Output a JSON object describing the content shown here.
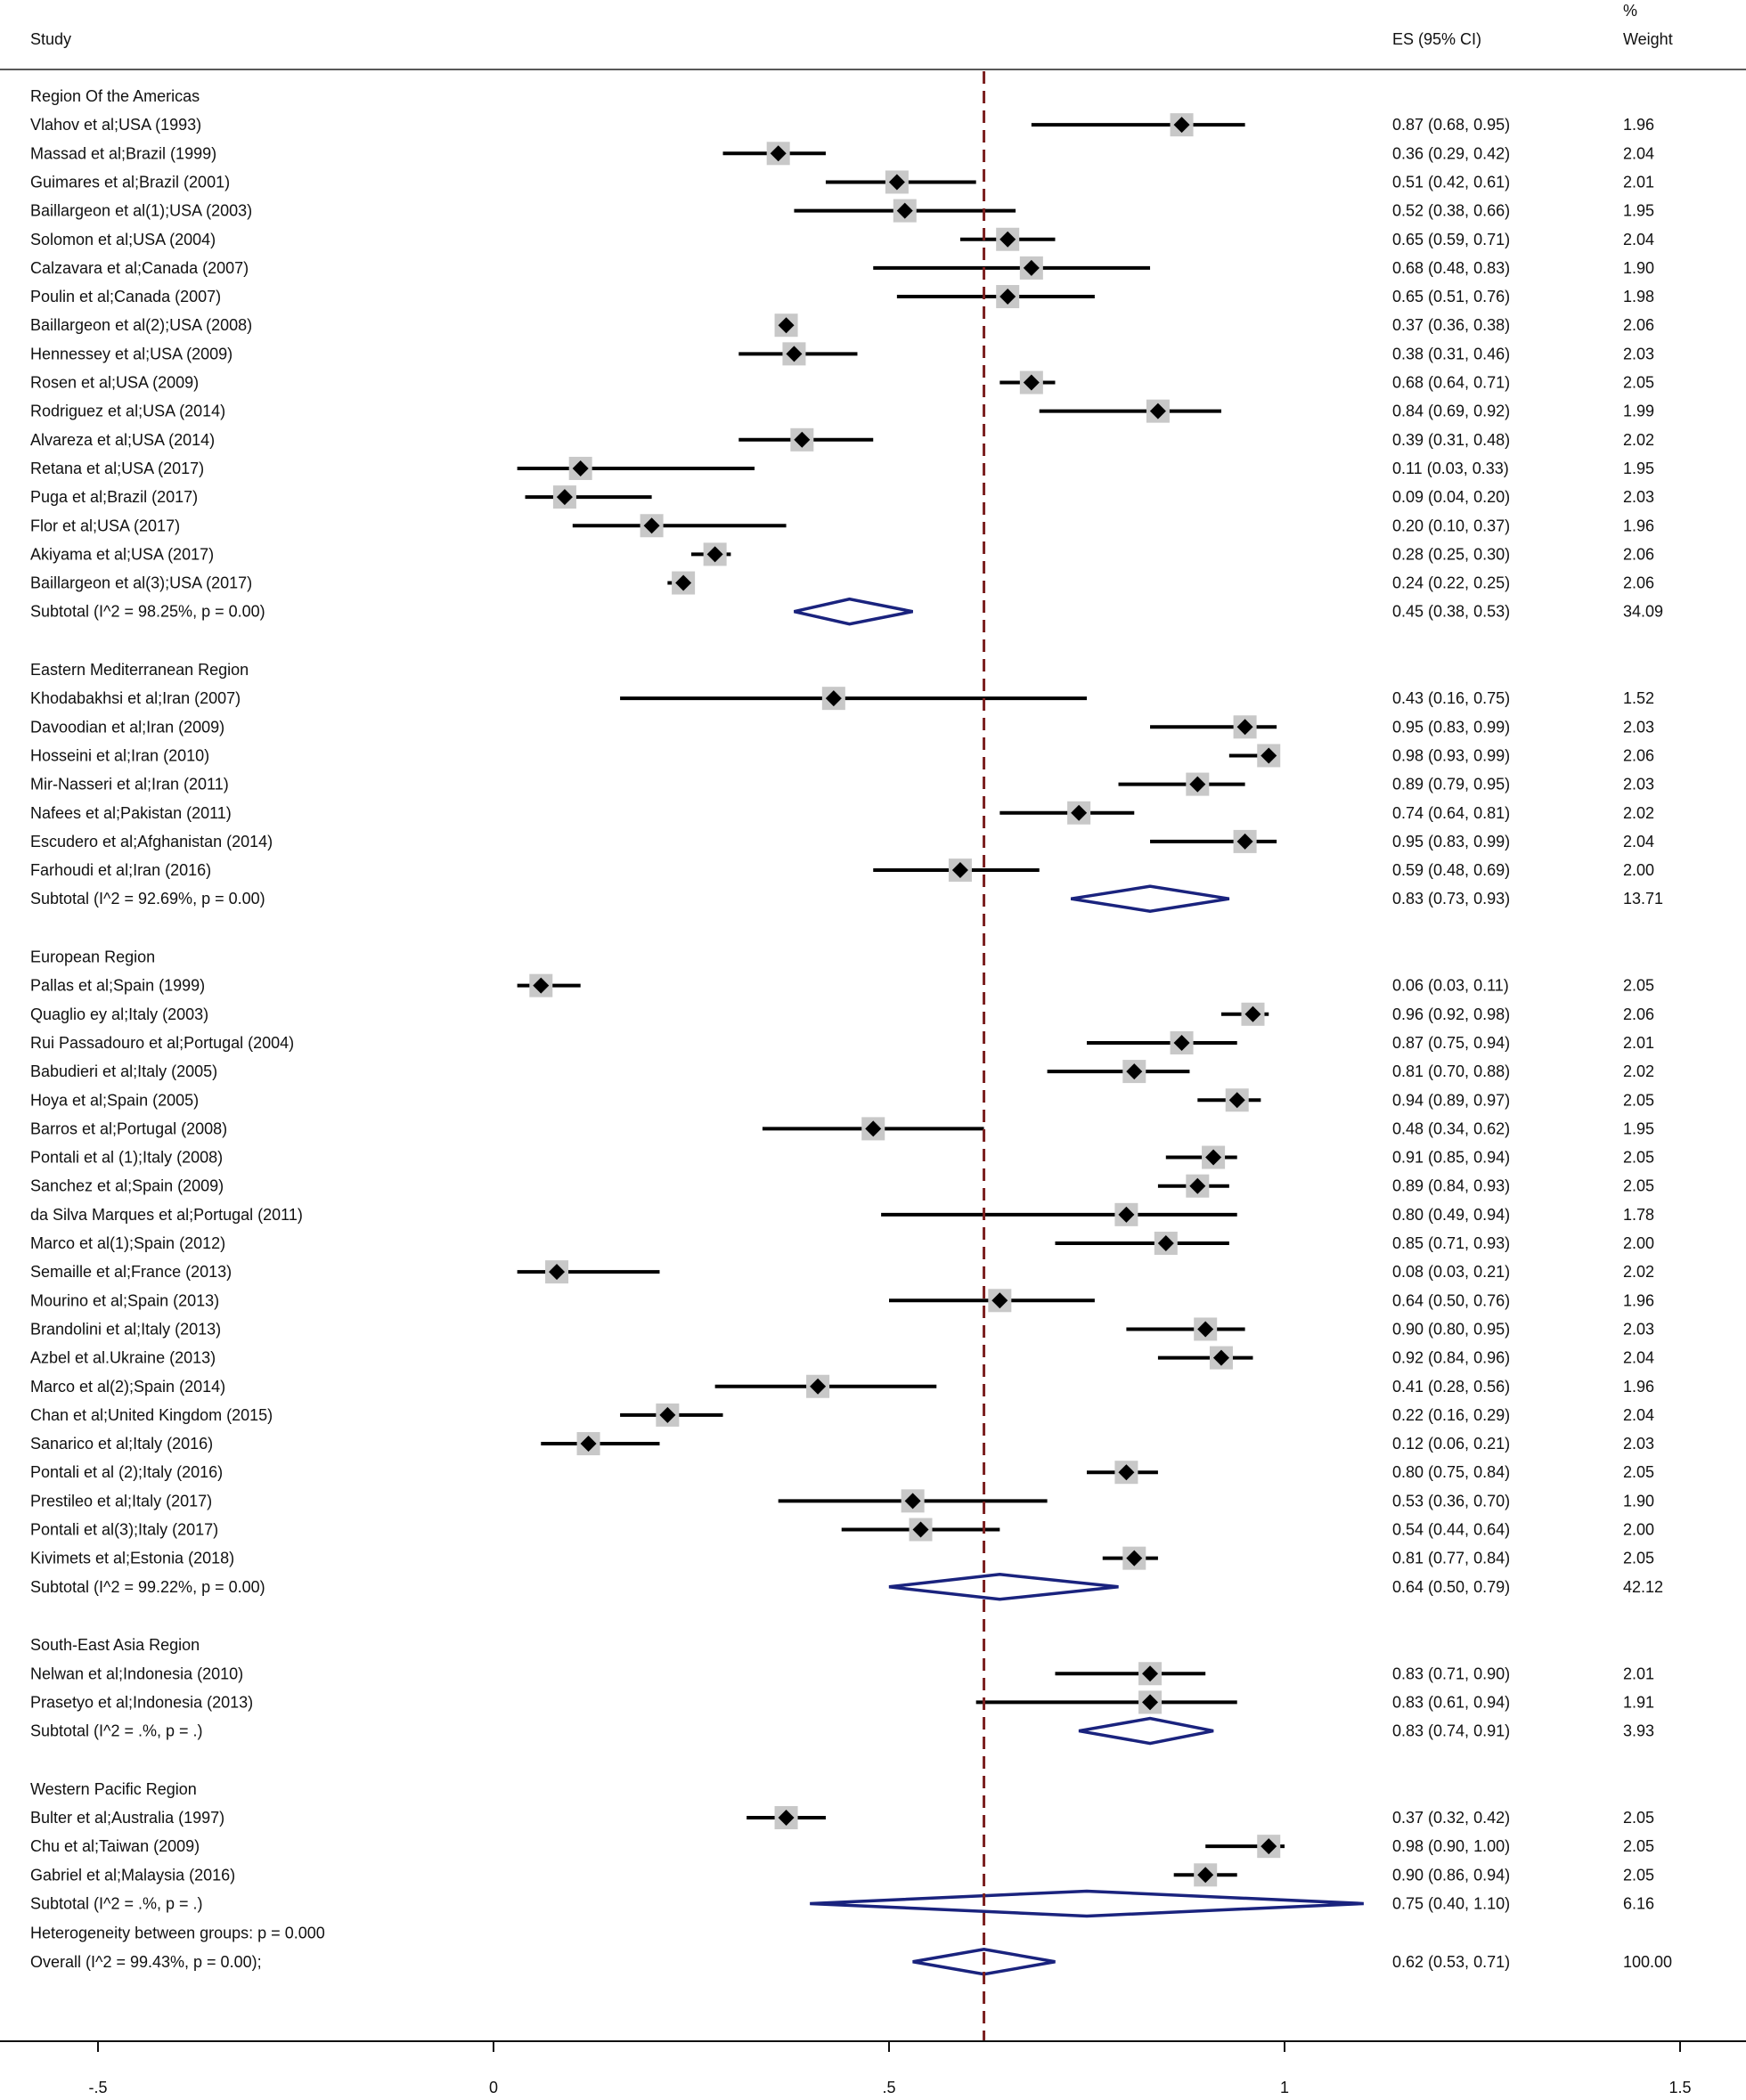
{
  "chart_data": {
    "type": "forest",
    "headers": {
      "study": "Study",
      "es": "ES (95% CI)",
      "weight_top": "%",
      "weight_bottom": "Weight"
    },
    "axis": {
      "xlim": [
        -0.5,
        1.5
      ],
      "ticks": [
        {
          "value": -0.5,
          "label": "-.5"
        },
        {
          "value": 0,
          "label": "0"
        },
        {
          "value": 0.5,
          "label": ".5"
        },
        {
          "value": 1,
          "label": "1"
        },
        {
          "value": 1.5,
          "label": "1.5"
        }
      ],
      "reference_line": 0.62
    },
    "groups": [
      {
        "name": "Region Of the Americas",
        "studies": [
          {
            "label": "Vlahov et al;USA (1993)",
            "es": 0.87,
            "lo": 0.68,
            "hi": 0.95,
            "ci_text": "0.87 (0.68, 0.95)",
            "weight": "1.96"
          },
          {
            "label": "Massad et al;Brazil (1999)",
            "es": 0.36,
            "lo": 0.29,
            "hi": 0.42,
            "ci_text": "0.36 (0.29, 0.42)",
            "weight": "2.04"
          },
          {
            "label": "Guimares et al;Brazil (2001)",
            "es": 0.51,
            "lo": 0.42,
            "hi": 0.61,
            "ci_text": "0.51 (0.42, 0.61)",
            "weight": "2.01"
          },
          {
            "label": "Baillargeon et al(1);USA (2003)",
            "es": 0.52,
            "lo": 0.38,
            "hi": 0.66,
            "ci_text": "0.52 (0.38, 0.66)",
            "weight": "1.95"
          },
          {
            "label": "Solomon et al;USA (2004)",
            "es": 0.65,
            "lo": 0.59,
            "hi": 0.71,
            "ci_text": "0.65 (0.59, 0.71)",
            "weight": "2.04"
          },
          {
            "label": "Calzavara et al;Canada (2007)",
            "es": 0.68,
            "lo": 0.48,
            "hi": 0.83,
            "ci_text": "0.68 (0.48, 0.83)",
            "weight": "1.90"
          },
          {
            "label": "Poulin et al;Canada (2007)",
            "es": 0.65,
            "lo": 0.51,
            "hi": 0.76,
            "ci_text": "0.65 (0.51, 0.76)",
            "weight": "1.98"
          },
          {
            "label": "Baillargeon et al(2);USA (2008)",
            "es": 0.37,
            "lo": 0.36,
            "hi": 0.38,
            "ci_text": "0.37 (0.36, 0.38)",
            "weight": "2.06"
          },
          {
            "label": "Hennessey et al;USA (2009)",
            "es": 0.38,
            "lo": 0.31,
            "hi": 0.46,
            "ci_text": "0.38 (0.31, 0.46)",
            "weight": "2.03"
          },
          {
            "label": "Rosen et al;USA (2009)",
            "es": 0.68,
            "lo": 0.64,
            "hi": 0.71,
            "ci_text": "0.68 (0.64, 0.71)",
            "weight": "2.05"
          },
          {
            "label": "Rodriguez et al;USA (2014)",
            "es": 0.84,
            "lo": 0.69,
            "hi": 0.92,
            "ci_text": "0.84 (0.69, 0.92)",
            "weight": "1.99"
          },
          {
            "label": "Alvareza et al;USA (2014)",
            "es": 0.39,
            "lo": 0.31,
            "hi": 0.48,
            "ci_text": "0.39 (0.31, 0.48)",
            "weight": "2.02"
          },
          {
            "label": "Retana et al;USA (2017)",
            "es": 0.11,
            "lo": 0.03,
            "hi": 0.33,
            "ci_text": "0.11 (0.03, 0.33)",
            "weight": "1.95"
          },
          {
            "label": "Puga et al;Brazil (2017)",
            "es": 0.09,
            "lo": 0.04,
            "hi": 0.2,
            "ci_text": "0.09 (0.04, 0.20)",
            "weight": "2.03"
          },
          {
            "label": "Flor et al;USA (2017)",
            "es": 0.2,
            "lo": 0.1,
            "hi": 0.37,
            "ci_text": "0.20 (0.10, 0.37)",
            "weight": "1.96"
          },
          {
            "label": "Akiyama et al;USA (2017)",
            "es": 0.28,
            "lo": 0.25,
            "hi": 0.3,
            "ci_text": "0.28 (0.25, 0.30)",
            "weight": "2.06"
          },
          {
            "label": "Baillargeon et al(3);USA (2017)",
            "es": 0.24,
            "lo": 0.22,
            "hi": 0.25,
            "ci_text": "0.24 (0.22, 0.25)",
            "weight": "2.06"
          }
        ],
        "subtotal": {
          "label": "Subtotal  (I^2 = 98.25%, p = 0.00)",
          "es": 0.45,
          "lo": 0.38,
          "hi": 0.53,
          "ci_text": "0.45 (0.38, 0.53)",
          "weight": "34.09"
        }
      },
      {
        "name": "Eastern Mediterranean Region",
        "studies": [
          {
            "label": "Khodabakhsi et al;Iran (2007)",
            "es": 0.43,
            "lo": 0.16,
            "hi": 0.75,
            "ci_text": "0.43 (0.16, 0.75)",
            "weight": "1.52"
          },
          {
            "label": "Davoodian et al;Iran (2009)",
            "es": 0.95,
            "lo": 0.83,
            "hi": 0.99,
            "ci_text": "0.95 (0.83, 0.99)",
            "weight": "2.03"
          },
          {
            "label": "Hosseini et al;Iran (2010)",
            "es": 0.98,
            "lo": 0.93,
            "hi": 0.99,
            "ci_text": "0.98 (0.93, 0.99)",
            "weight": "2.06"
          },
          {
            "label": "Mir-Nasseri et al;Iran (2011)",
            "es": 0.89,
            "lo": 0.79,
            "hi": 0.95,
            "ci_text": "0.89 (0.79, 0.95)",
            "weight": "2.03"
          },
          {
            "label": "Nafees et al;Pakistan (2011)",
            "es": 0.74,
            "lo": 0.64,
            "hi": 0.81,
            "ci_text": "0.74 (0.64, 0.81)",
            "weight": "2.02"
          },
          {
            "label": "Escudero et al;Afghanistan (2014)",
            "es": 0.95,
            "lo": 0.83,
            "hi": 0.99,
            "ci_text": "0.95 (0.83, 0.99)",
            "weight": "2.04"
          },
          {
            "label": "Farhoudi et al;Iran (2016)",
            "es": 0.59,
            "lo": 0.48,
            "hi": 0.69,
            "ci_text": "0.59 (0.48, 0.69)",
            "weight": "2.00"
          }
        ],
        "subtotal": {
          "label": "Subtotal  (I^2 = 92.69%, p = 0.00)",
          "es": 0.83,
          "lo": 0.73,
          "hi": 0.93,
          "ci_text": "0.83 (0.73, 0.93)",
          "weight": "13.71"
        }
      },
      {
        "name": "European Region",
        "studies": [
          {
            "label": "Pallas et al;Spain (1999)",
            "es": 0.06,
            "lo": 0.03,
            "hi": 0.11,
            "ci_text": "0.06 (0.03, 0.11)",
            "weight": "2.05"
          },
          {
            "label": "Quaglio ey al;Italy (2003)",
            "es": 0.96,
            "lo": 0.92,
            "hi": 0.98,
            "ci_text": "0.96 (0.92, 0.98)",
            "weight": "2.06"
          },
          {
            "label": "Rui Passadouro et al;Portugal (2004)",
            "es": 0.87,
            "lo": 0.75,
            "hi": 0.94,
            "ci_text": "0.87 (0.75, 0.94)",
            "weight": "2.01"
          },
          {
            "label": "Babudieri et al;Italy (2005)",
            "es": 0.81,
            "lo": 0.7,
            "hi": 0.88,
            "ci_text": "0.81 (0.70, 0.88)",
            "weight": "2.02"
          },
          {
            "label": "Hoya et al;Spain (2005)",
            "es": 0.94,
            "lo": 0.89,
            "hi": 0.97,
            "ci_text": "0.94 (0.89, 0.97)",
            "weight": "2.05"
          },
          {
            "label": "Barros et al;Portugal (2008)",
            "es": 0.48,
            "lo": 0.34,
            "hi": 0.62,
            "ci_text": "0.48 (0.34, 0.62)",
            "weight": "1.95"
          },
          {
            "label": "Pontali et al (1);Italy (2008)",
            "es": 0.91,
            "lo": 0.85,
            "hi": 0.94,
            "ci_text": "0.91 (0.85, 0.94)",
            "weight": "2.05"
          },
          {
            "label": "Sanchez et al;Spain (2009)",
            "es": 0.89,
            "lo": 0.84,
            "hi": 0.93,
            "ci_text": "0.89 (0.84, 0.93)",
            "weight": "2.05"
          },
          {
            "label": "da Silva Marques et al;Portugal (2011)",
            "es": 0.8,
            "lo": 0.49,
            "hi": 0.94,
            "ci_text": "0.80 (0.49, 0.94)",
            "weight": "1.78"
          },
          {
            "label": "Marco et al(1);Spain (2012)",
            "es": 0.85,
            "lo": 0.71,
            "hi": 0.93,
            "ci_text": "0.85 (0.71, 0.93)",
            "weight": "2.00"
          },
          {
            "label": "Semaille et al;France (2013)",
            "es": 0.08,
            "lo": 0.03,
            "hi": 0.21,
            "ci_text": "0.08 (0.03, 0.21)",
            "weight": "2.02"
          },
          {
            "label": "Mourino et al;Spain (2013)",
            "es": 0.64,
            "lo": 0.5,
            "hi": 0.76,
            "ci_text": "0.64 (0.50, 0.76)",
            "weight": "1.96"
          },
          {
            "label": "Brandolini et al;Italy (2013)",
            "es": 0.9,
            "lo": 0.8,
            "hi": 0.95,
            "ci_text": "0.90 (0.80, 0.95)",
            "weight": "2.03"
          },
          {
            "label": "Azbel et al.Ukraine (2013)",
            "es": 0.92,
            "lo": 0.84,
            "hi": 0.96,
            "ci_text": "0.92 (0.84, 0.96)",
            "weight": "2.04"
          },
          {
            "label": "Marco et al(2);Spain (2014)",
            "es": 0.41,
            "lo": 0.28,
            "hi": 0.56,
            "ci_text": "0.41 (0.28, 0.56)",
            "weight": "1.96"
          },
          {
            "label": "Chan et al;United Kingdom  (2015)",
            "es": 0.22,
            "lo": 0.16,
            "hi": 0.29,
            "ci_text": "0.22 (0.16, 0.29)",
            "weight": "2.04"
          },
          {
            "label": "Sanarico et al;Italy (2016)",
            "es": 0.12,
            "lo": 0.06,
            "hi": 0.21,
            "ci_text": "0.12 (0.06, 0.21)",
            "weight": "2.03"
          },
          {
            "label": "Pontali et al (2);Italy (2016)",
            "es": 0.8,
            "lo": 0.75,
            "hi": 0.84,
            "ci_text": "0.80 (0.75, 0.84)",
            "weight": "2.05"
          },
          {
            "label": "Prestileo et al;Italy (2017)",
            "es": 0.53,
            "lo": 0.36,
            "hi": 0.7,
            "ci_text": "0.53 (0.36, 0.70)",
            "weight": "1.90"
          },
          {
            "label": "Pontali et al(3);Italy (2017)",
            "es": 0.54,
            "lo": 0.44,
            "hi": 0.64,
            "ci_text": "0.54 (0.44, 0.64)",
            "weight": "2.00"
          },
          {
            "label": "Kivimets et al;Estonia (2018)",
            "es": 0.81,
            "lo": 0.77,
            "hi": 0.84,
            "ci_text": "0.81 (0.77, 0.84)",
            "weight": "2.05"
          }
        ],
        "subtotal": {
          "label": "Subtotal  (I^2 = 99.22%, p = 0.00)",
          "es": 0.64,
          "lo": 0.5,
          "hi": 0.79,
          "ci_text": "0.64 (0.50, 0.79)",
          "weight": "42.12"
        }
      },
      {
        "name": "South-East Asia Region",
        "studies": [
          {
            "label": "Nelwan et al;Indonesia (2010)",
            "es": 0.83,
            "lo": 0.71,
            "hi": 0.9,
            "ci_text": "0.83 (0.71, 0.90)",
            "weight": "2.01"
          },
          {
            "label": "Prasetyo et al;Indonesia (2013)",
            "es": 0.83,
            "lo": 0.61,
            "hi": 0.94,
            "ci_text": "0.83 (0.61, 0.94)",
            "weight": "1.91"
          }
        ],
        "subtotal": {
          "label": "Subtotal  (I^2 = .%, p = .)",
          "es": 0.83,
          "lo": 0.74,
          "hi": 0.91,
          "ci_text": "0.83 (0.74, 0.91)",
          "weight": "3.93"
        }
      },
      {
        "name": "Western Pacific Region",
        "studies": [
          {
            "label": "Bulter et al;Australia (1997)",
            "es": 0.37,
            "lo": 0.32,
            "hi": 0.42,
            "ci_text": "0.37 (0.32, 0.42)",
            "weight": "2.05"
          },
          {
            "label": "Chu et al;Taiwan (2009)",
            "es": 0.98,
            "lo": 0.9,
            "hi": 1.0,
            "ci_text": "0.98 (0.90, 1.00)",
            "weight": "2.05"
          },
          {
            "label": "Gabriel et al;Malaysia (2016)",
            "es": 0.9,
            "lo": 0.86,
            "hi": 0.94,
            "ci_text": "0.90 (0.86, 0.94)",
            "weight": "2.05"
          }
        ],
        "subtotal": {
          "label": "Subtotal  (I^2 = .%, p = .)",
          "es": 0.75,
          "lo": 0.4,
          "hi": 1.1,
          "ci_text": "0.75 (0.40, 1.10)",
          "weight": "6.16"
        }
      }
    ],
    "heterogeneity_between": "Heterogeneity between groups: p = 0.000",
    "overall": {
      "label": "Overall  (I^2 = 99.43%, p = 0.00);",
      "es": 0.62,
      "lo": 0.53,
      "hi": 0.71,
      "ci_text": "0.62 (0.53, 0.71)",
      "weight": "100.00"
    }
  },
  "colors": {
    "diamond_stroke": "#1a237e",
    "reference_line": "#7b1f1f",
    "marker": "#000000",
    "box_fill": "#c8c8c8"
  }
}
